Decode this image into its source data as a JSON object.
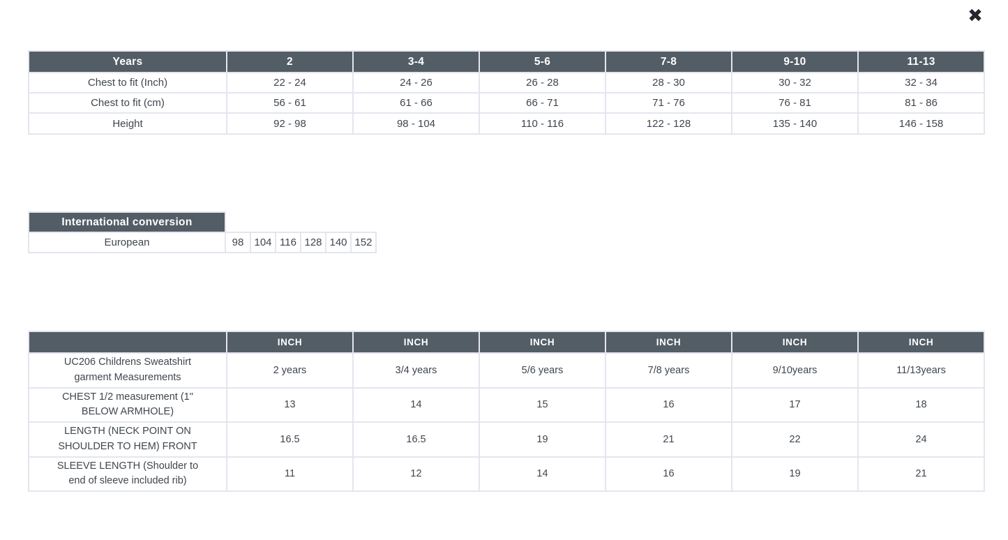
{
  "modal": {
    "close_icon": "✖"
  },
  "colors": {
    "header_bg": "#535d66",
    "header_text": "#ffffff",
    "body_text": "#3f464e",
    "cell_border": "#e4e5ef",
    "close_icon": "#23272e"
  },
  "size_chart": {
    "columns": [
      "Years",
      "2",
      "3-4",
      "5-6",
      "7-8",
      "9-10",
      "11-13"
    ],
    "rows": [
      {
        "label": "Chest to fit (Inch)",
        "values": [
          "22 - 24",
          "24 - 26",
          "26 - 28",
          "28 - 30",
          "30 - 32",
          "32 - 34"
        ]
      },
      {
        "label": "Chest to fit (cm)",
        "values": [
          "56 - 61",
          "61 - 66",
          "66 - 71",
          "71 - 76",
          "76 - 81",
          "81 - 86"
        ]
      },
      {
        "label": "Height",
        "values": [
          "92 - 98",
          "98 - 104",
          "110 - 116",
          "122 - 128",
          "135 - 140",
          "146 - 158"
        ]
      }
    ]
  },
  "international_conversion": {
    "header": "International conversion",
    "row": {
      "label": "European",
      "values": [
        "98",
        "104",
        "116",
        "128",
        "140",
        "152"
      ]
    }
  },
  "garment_measurements": {
    "columns": [
      "",
      "INCH",
      "INCH",
      "INCH",
      "INCH",
      "INCH",
      "INCH"
    ],
    "rows": [
      {
        "label": "UC206 Childrens Sweatshirt garment Measurements",
        "values": [
          "2 years",
          "3/4 years",
          "5/6 years",
          "7/8 years",
          "9/10years",
          "11/13years"
        ]
      },
      {
        "label": "CHEST 1/2 measurement (1\" BELOW ARMHOLE)",
        "values": [
          "13",
          "14",
          "15",
          "16",
          "17",
          "18"
        ]
      },
      {
        "label": "LENGTH (NECK POINT ON SHOULDER TO HEM) FRONT",
        "values": [
          "16.5",
          "16.5",
          "19",
          "21",
          "22",
          "24"
        ]
      },
      {
        "label": "SLEEVE LENGTH (Shoulder to end of sleeve included rib)",
        "values": [
          "11",
          "12",
          "14",
          "16",
          "19",
          "21"
        ]
      }
    ]
  }
}
